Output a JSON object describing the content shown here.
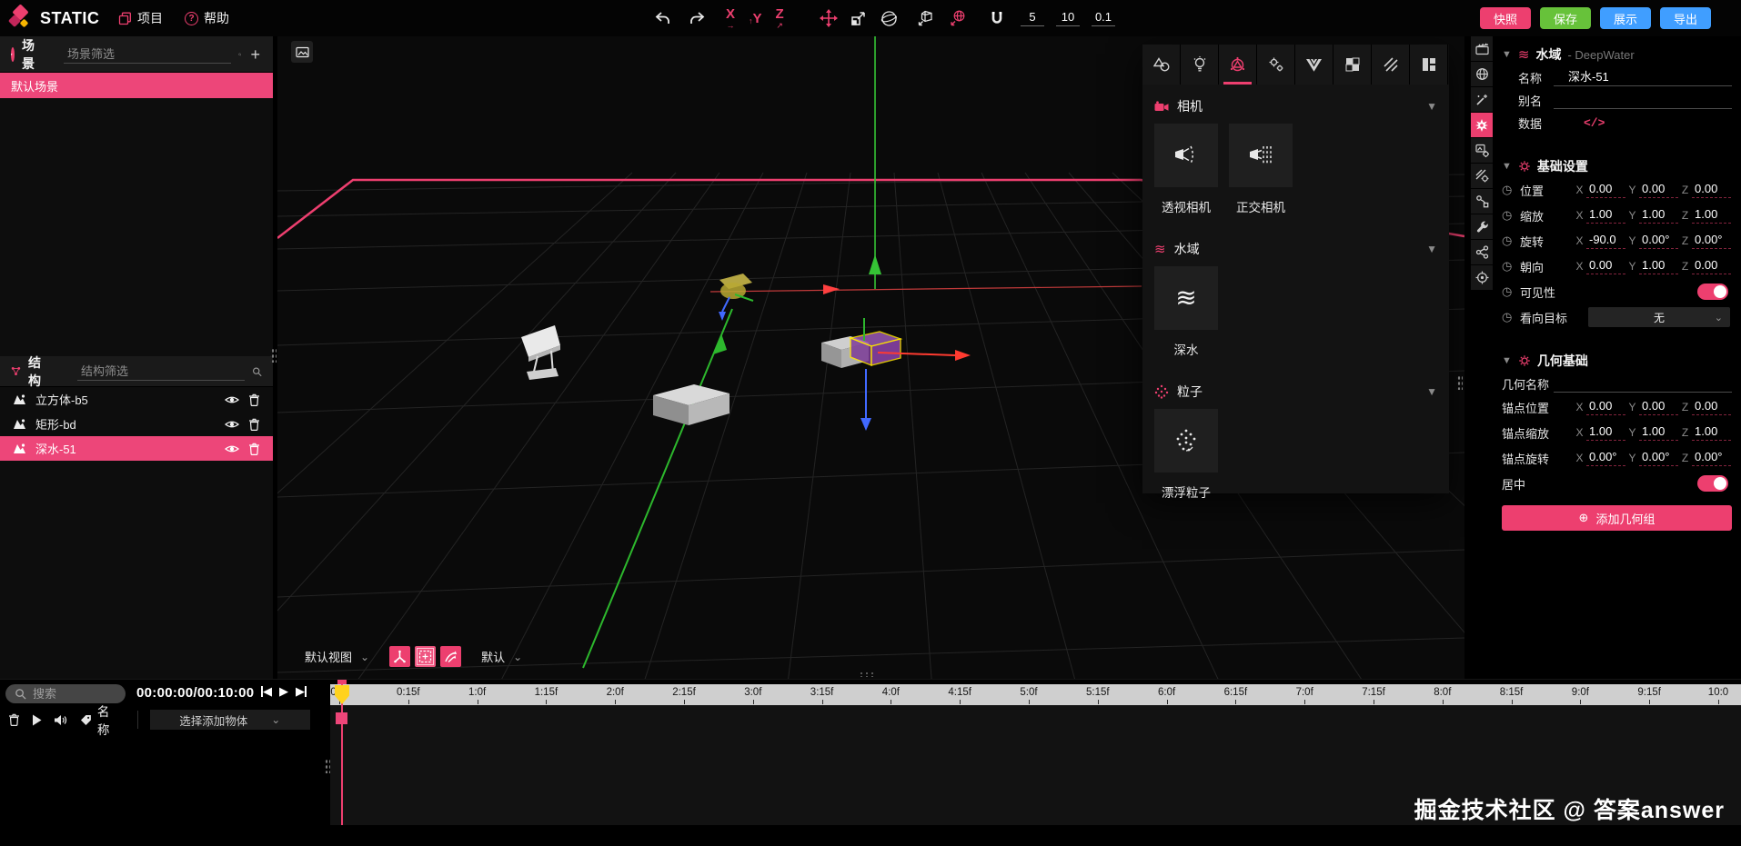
{
  "app": {
    "name": "STATIC"
  },
  "colors": {
    "accent_pink": "#ed3f6f",
    "selected_row_pink": "#ed4679",
    "save_green": "#67c23a",
    "action_blue": "#409eff",
    "playhead_yellow": "#ffd21e",
    "axis_green": "#35c335",
    "axis_red": "#ff4040",
    "axis_blue": "#4169ff"
  },
  "topbar": {
    "menus": [
      {
        "label": "项目"
      },
      {
        "label": "帮助"
      }
    ],
    "axis_toggles": [
      "X",
      "Y",
      "Z"
    ],
    "snap_values": [
      "5",
      "10",
      "0.1"
    ],
    "actions": [
      {
        "label": "快照",
        "color": "#ed3f6f"
      },
      {
        "label": "保存",
        "color": "#67c23a"
      },
      {
        "label": "展示",
        "color": "#409eff"
      },
      {
        "label": "导出",
        "color": "#409eff"
      }
    ]
  },
  "scene_panel": {
    "title": "场景",
    "filter_placeholder": "场景筛选",
    "items": [
      {
        "label": "默认场景",
        "selected": true
      }
    ]
  },
  "structure_panel": {
    "title": "结构",
    "filter_placeholder": "结构筛选",
    "items": [
      {
        "label": "立方体-b5",
        "selected": false
      },
      {
        "label": "矩形-bd",
        "selected": false
      },
      {
        "label": "深水-51",
        "selected": true
      }
    ]
  },
  "viewport": {
    "view_select": "默认视图",
    "gizmo_select": "默认"
  },
  "library": {
    "sections": [
      {
        "title": "相机",
        "tiles": [
          {
            "label": "透视相机"
          },
          {
            "label": "正交相机"
          }
        ]
      },
      {
        "title": "水域",
        "tiles": [
          {
            "label": "深水"
          }
        ]
      },
      {
        "title": "粒子",
        "tiles": [
          {
            "label": "漂浮粒子"
          }
        ]
      }
    ]
  },
  "properties": {
    "type_title": "水域",
    "type_subtitle": "- DeepWater",
    "name_label": "名称",
    "name_value": "深水-51",
    "alias_label": "别名",
    "alias_value": "",
    "data_label": "数据",
    "data_glyph": "</>",
    "basic_section": "基础设置",
    "basic_rows": [
      {
        "label": "位置",
        "x": "0.00",
        "y": "0.00",
        "z": "0.00"
      },
      {
        "label": "缩放",
        "x": "1.00",
        "y": "1.00",
        "z": "1.00"
      },
      {
        "label": "旋转",
        "x": "-90.0",
        "y": "0.00°",
        "z": "0.00°"
      },
      {
        "label": "朝向",
        "x": "0.00",
        "y": "1.00",
        "z": "0.00"
      }
    ],
    "visibility_label": "可见性",
    "visibility_on": true,
    "target_label": "看向目标",
    "target_value": "无",
    "geometry_section": "几何基础",
    "geometry_name_label": "几何名称",
    "geometry_name_value": "",
    "anchor_rows": [
      {
        "label": "锚点位置",
        "x": "0.00",
        "y": "0.00",
        "z": "0.00"
      },
      {
        "label": "锚点缩放",
        "x": "1.00",
        "y": "1.00",
        "z": "1.00"
      },
      {
        "label": "锚点旋转",
        "x": "0.00°",
        "y": "0.00°",
        "z": "0.00°"
      }
    ],
    "center_label": "居中",
    "center_on": true,
    "add_group_label": "添加几何组"
  },
  "timeline": {
    "search_placeholder": "搜索",
    "time_display": "00:00:00/00:10:00",
    "name_label": "名称",
    "add_object_placeholder": "选择添加物体",
    "ruler_labels": [
      "0:0f",
      "0:15f",
      "1:0f",
      "1:15f",
      "2:0f",
      "2:15f",
      "3:0f",
      "3:15f",
      "4:0f",
      "4:15f",
      "5:0f",
      "5:15f",
      "6:0f",
      "6:15f",
      "7:0f",
      "7:15f",
      "8:0f",
      "8:15f",
      "9:0f",
      "9:15f",
      "10:0"
    ]
  },
  "watermark": "掘金技术社区 @ 答案answer"
}
